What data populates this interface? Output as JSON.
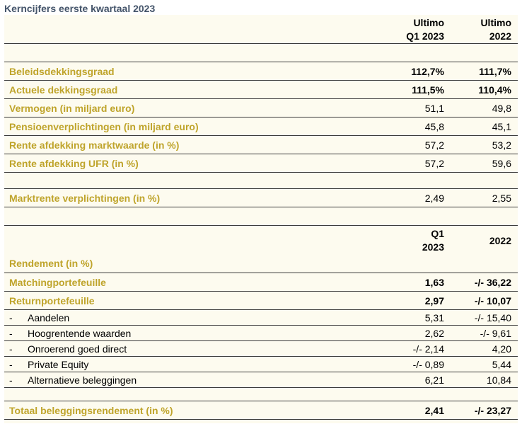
{
  "title": "Kerncijfers eerste kwartaal 2023",
  "header1": {
    "col1_line1": "Ultimo",
    "col1_line2": "Q1 2023",
    "col2_line1": "Ultimo",
    "col2_line2": "2022"
  },
  "key_figures": [
    {
      "label": "Beleidsdekkingsgraad",
      "q1_2023": "112,7%",
      "y2022": "111,7%",
      "bold_values": true
    },
    {
      "label": "Actuele dekkingsgraad",
      "q1_2023": "111,5%",
      "y2022": "110,4%",
      "bold_values": true
    },
    {
      "label": "Vermogen (in miljard euro)",
      "q1_2023": "51,1",
      "y2022": "49,8"
    },
    {
      "label": "Pensioenverplichtingen (in miljard euro)",
      "q1_2023": "45,8",
      "y2022": "45,1"
    },
    {
      "label": "Rente afdekking marktwaarde (in %)",
      "q1_2023": "57,2",
      "y2022": "53,2"
    },
    {
      "label": "Rente afdekking UFR (in %)",
      "q1_2023": "57,2",
      "y2022": "59,6"
    }
  ],
  "market_rate": {
    "label": "Marktrente verplichtingen (in %)",
    "q1_2023": "2,49",
    "y2022": "2,55"
  },
  "header2": {
    "col1_line1": "Q1",
    "col1_line2": "2023",
    "col2": "2022"
  },
  "returns": {
    "section_label": "Rendement (in %)",
    "matching": {
      "label": "Matchingportefeuille",
      "q1_2023": "1,63",
      "y2022": "-/- 36,22"
    },
    "return_portfolio": {
      "label": "Returnportefeuille",
      "q1_2023": "2,97",
      "y2022": "-/- 10,07"
    },
    "sub_items": [
      {
        "dash": "-",
        "label": "Aandelen",
        "q1_2023": "5,31",
        "y2022": "-/- 15,40"
      },
      {
        "dash": "-",
        "label": "Hoogrentende waarden",
        "q1_2023": "2,62",
        "y2022": "-/- 9,61"
      },
      {
        "dash": "-",
        "label": "Onroerend goed direct",
        "q1_2023": "-/- 2,14",
        "y2022": "4,20"
      },
      {
        "dash": "-",
        "label": "Private Equity",
        "q1_2023": "-/- 0,89",
        "y2022": "5,44"
      },
      {
        "dash": "-",
        "label": "Alternatieve beleggingen",
        "q1_2023": "6,21",
        "y2022": "10,84"
      }
    ],
    "total": {
      "label": "Totaal beleggingsrendement (in %)",
      "q1_2023": "2,41",
      "y2022": "-/- 23,27"
    }
  },
  "colors": {
    "label_gold": "#bfa42b",
    "title": "#44546a",
    "row_background": "#fdfbef",
    "rule": "#3b3b3b"
  }
}
